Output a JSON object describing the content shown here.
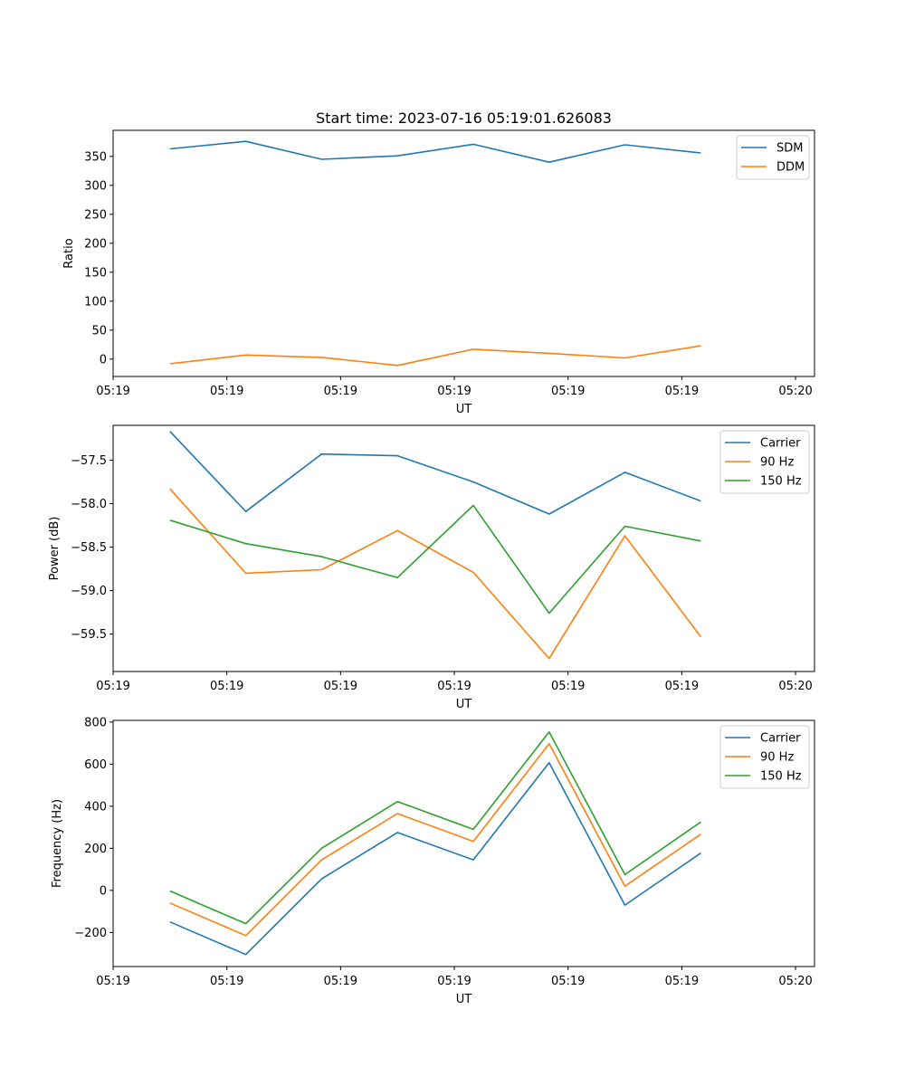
{
  "chart_data": [
    {
      "type": "line",
      "title": "Start time: 2023-07-16 05:19:01.626083",
      "xlabel": "UT",
      "ylabel": "Ratio",
      "xlim": [
        0,
        9.25
      ],
      "ylim": [
        -30,
        395
      ],
      "x": [
        0.75,
        1.75,
        2.75,
        3.75,
        4.75,
        5.75,
        6.75,
        7.75
      ],
      "xticks": [
        0,
        1.5,
        3,
        4.5,
        6,
        7.5,
        9
      ],
      "xtick_labels": [
        "05:19",
        "05:19",
        "05:19",
        "05:19",
        "05:19",
        "05:19",
        "05:20"
      ],
      "yticks": [
        0,
        50,
        100,
        150,
        200,
        250,
        300,
        350
      ],
      "ytick_labels": [
        "0",
        "50",
        "100",
        "150",
        "200",
        "250",
        "300",
        "350"
      ],
      "legend_position": "top-right",
      "series": [
        {
          "name": "SDM",
          "color": "#1f77b4",
          "values": [
            363,
            376,
            345,
            351,
            371,
            340,
            370,
            356
          ]
        },
        {
          "name": "DDM",
          "color": "#ff7f0e",
          "values": [
            -8,
            7,
            3,
            -11,
            17,
            10,
            2,
            23
          ]
        }
      ]
    },
    {
      "type": "line",
      "title": "",
      "xlabel": "UT",
      "ylabel": "Power (dB)",
      "xlim": [
        0,
        9.25
      ],
      "ylim": [
        -59.93,
        -57.1
      ],
      "x": [
        0.75,
        1.75,
        2.75,
        3.75,
        4.75,
        5.75,
        6.75,
        7.75
      ],
      "xticks": [
        0,
        1.5,
        3,
        4.5,
        6,
        7.5,
        9
      ],
      "xtick_labels": [
        "05:19",
        "05:19",
        "05:19",
        "05:19",
        "05:19",
        "05:19",
        "05:20"
      ],
      "yticks": [
        -59.5,
        -59.0,
        -58.5,
        -58.0,
        -57.5
      ],
      "ytick_labels": [
        "−59.5",
        "−59.0",
        "−58.5",
        "−58.0",
        "−57.5"
      ],
      "legend_position": "top-right",
      "series": [
        {
          "name": "Carrier",
          "color": "#1f77b4",
          "values": [
            -57.17,
            -58.09,
            -57.43,
            -57.45,
            -57.75,
            -58.12,
            -57.64,
            -57.97
          ]
        },
        {
          "name": "90 Hz",
          "color": "#ff7f0e",
          "values": [
            -57.83,
            -58.8,
            -58.76,
            -58.31,
            -58.79,
            -59.78,
            -58.37,
            -59.53
          ]
        },
        {
          "name": "150 Hz",
          "color": "#2ca02c",
          "values": [
            -58.19,
            -58.46,
            -58.61,
            -58.85,
            -58.02,
            -59.26,
            -58.26,
            -58.43
          ]
        }
      ]
    },
    {
      "type": "line",
      "title": "",
      "xlabel": "UT",
      "ylabel": "Frequency (Hz)",
      "xlim": [
        0,
        9.25
      ],
      "ylim": [
        -362,
        808
      ],
      "x": [
        0.75,
        1.75,
        2.75,
        3.75,
        4.75,
        5.75,
        6.75,
        7.75
      ],
      "xticks": [
        0,
        1.5,
        3,
        4.5,
        6,
        7.5,
        9
      ],
      "xtick_labels": [
        "05:19",
        "05:19",
        "05:19",
        "05:19",
        "05:19",
        "05:19",
        "05:20"
      ],
      "yticks": [
        -200,
        0,
        200,
        400,
        600,
        800
      ],
      "ytick_labels": [
        "−200",
        "0",
        "200",
        "400",
        "600",
        "800"
      ],
      "legend_position": "top-right",
      "series": [
        {
          "name": "Carrier",
          "color": "#1f77b4",
          "values": [
            -150,
            -305,
            55,
            275,
            145,
            607,
            -70,
            177
          ]
        },
        {
          "name": "90 Hz",
          "color": "#ff7f0e",
          "values": [
            -60,
            -215,
            145,
            365,
            233,
            697,
            20,
            267
          ]
        },
        {
          "name": "150 Hz",
          "color": "#2ca02c",
          "values": [
            -3,
            -158,
            200,
            422,
            290,
            753,
            75,
            325
          ]
        }
      ]
    }
  ]
}
